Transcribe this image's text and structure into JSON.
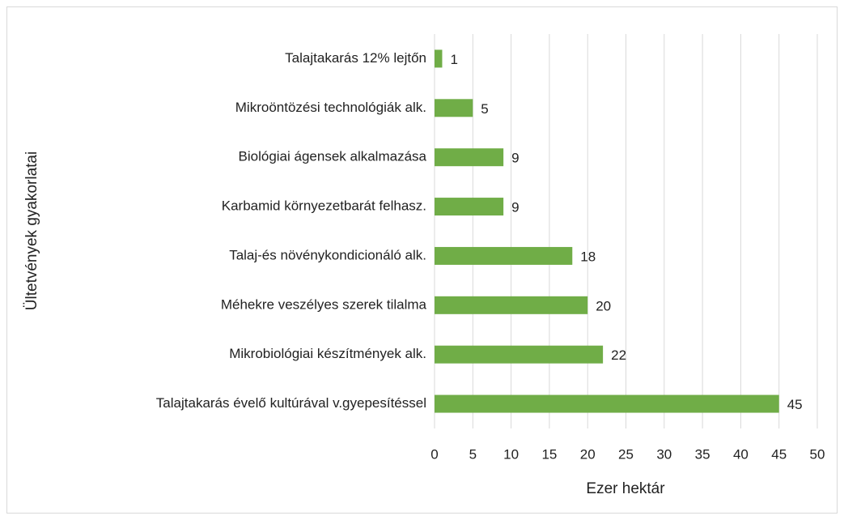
{
  "chart_data": {
    "type": "bar",
    "orientation": "horizontal",
    "categories": [
      "Talajtakarás 12% lejtőn",
      "Mikroöntözési technológiák alk.",
      "Biológiai ágensek alkalmazása",
      "Karbamid környezetbarát felhasz.",
      "Talaj-és növénykondicionáló alk.",
      "Méhekre veszélyes szerek tilalma",
      "Mikrobiológiai készítmények alk.",
      "Talajtakarás évelő kultúrával v.gyepesítéssel"
    ],
    "values": [
      1,
      5,
      9,
      9,
      18,
      20,
      22,
      45
    ],
    "color": "#70ad47",
    "xlim": [
      0,
      50
    ],
    "xticks": [
      0,
      5,
      10,
      15,
      20,
      25,
      30,
      35,
      40,
      45,
      50
    ],
    "xlabel": "Ezer hektár",
    "ylabel": "Ültetvények gyakorlatai",
    "grid": true
  }
}
